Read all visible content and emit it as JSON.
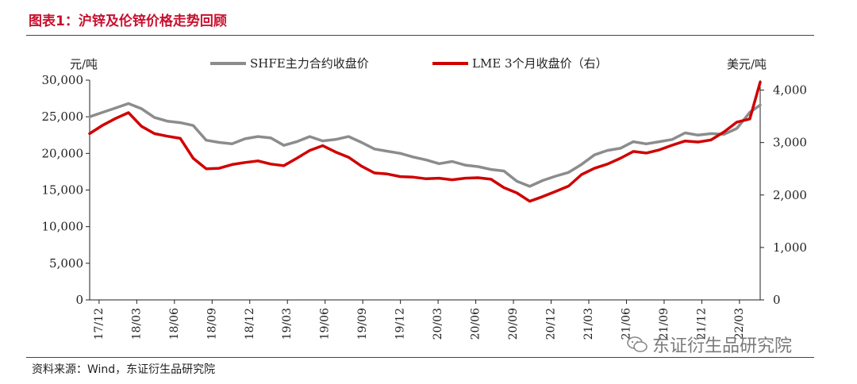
{
  "title": "图表1：沪锌及伦锌价格走势回顾",
  "source": "资料来源：Wind，东证衍生品研究院",
  "watermark": "东证衍生品研究院",
  "colors": {
    "shfe": "#8c8c8c",
    "lme": "#d00000",
    "title": "#c8102e"
  },
  "chart_data": {
    "type": "line",
    "title": "",
    "xlabel": "",
    "ylabel_left": "元/吨",
    "ylabel_right": "美元/吨",
    "ylim_left": [
      0,
      30000
    ],
    "ylim_right": [
      0,
      4190
    ],
    "yticks_left": [
      "0",
      "5,000",
      "10,000",
      "15,000",
      "20,000",
      "25,000",
      "30,000"
    ],
    "yticks_left_values": [
      0,
      5000,
      10000,
      15000,
      20000,
      25000,
      30000
    ],
    "yticks_right": [
      "0",
      "1,000",
      "2,000",
      "3,000",
      "4,000"
    ],
    "yticks_right_values": [
      0,
      1000,
      2000,
      3000,
      4000
    ],
    "x_tick_labels": [
      "17/12",
      "18/03",
      "18/06",
      "18/09",
      "18/12",
      "19/03",
      "19/06",
      "19/09",
      "19/12",
      "20/03",
      "20/06",
      "20/09",
      "20/12",
      "21/03",
      "21/06",
      "21/09",
      "21/12",
      "22/03"
    ],
    "x_range": [
      0,
      51.8
    ],
    "series": [
      {
        "name": "SHFE主力合约收盘价",
        "axis": "left",
        "x": [
          0,
          1,
          2,
          3,
          4,
          5,
          6,
          7,
          8,
          9,
          10,
          11,
          12,
          13,
          14,
          15,
          16,
          17,
          18,
          19,
          20,
          21,
          22,
          23,
          24,
          25,
          26,
          27,
          28,
          29,
          30,
          31,
          32,
          33,
          34,
          35,
          36,
          37,
          38,
          39,
          40,
          41,
          42,
          43,
          44,
          45,
          46,
          47,
          48,
          49,
          50,
          51,
          51.8
        ],
        "values": [
          25000,
          25600,
          26200,
          26800,
          26100,
          24900,
          24400,
          24200,
          23800,
          21800,
          21500,
          21300,
          22000,
          22300,
          22100,
          21100,
          21600,
          22300,
          21700,
          21900,
          22300,
          21500,
          20600,
          20300,
          20000,
          19500,
          19100,
          18600,
          18900,
          18400,
          18200,
          17800,
          17600,
          16200,
          15500,
          16300,
          16900,
          17400,
          18500,
          19800,
          20400,
          20700,
          21600,
          21300,
          21600,
          21900,
          22800,
          22500,
          22700,
          22600,
          23400,
          25600,
          26600
        ]
      },
      {
        "name": "LME 3个月收盘价（右）",
        "axis": "right",
        "x": [
          0,
          1,
          2,
          3,
          4,
          5,
          6,
          7,
          8,
          9,
          10,
          11,
          12,
          13,
          14,
          15,
          16,
          17,
          18,
          19,
          20,
          21,
          22,
          23,
          24,
          25,
          26,
          27,
          28,
          29,
          30,
          31,
          32,
          33,
          34,
          35,
          36,
          37,
          38,
          39,
          40,
          41,
          42,
          43,
          44,
          45,
          46,
          47,
          48,
          49,
          50,
          51,
          51.8
        ],
        "values": [
          3170,
          3330,
          3460,
          3570,
          3310,
          3170,
          3120,
          3080,
          2700,
          2500,
          2510,
          2580,
          2620,
          2650,
          2590,
          2560,
          2700,
          2850,
          2940,
          2820,
          2720,
          2550,
          2420,
          2400,
          2350,
          2340,
          2310,
          2320,
          2290,
          2320,
          2330,
          2300,
          2140,
          2040,
          1880,
          1970,
          2070,
          2170,
          2390,
          2510,
          2590,
          2700,
          2830,
          2800,
          2860,
          2950,
          3030,
          3010,
          3050,
          3200,
          3390,
          3450,
          4150
        ]
      }
    ]
  }
}
